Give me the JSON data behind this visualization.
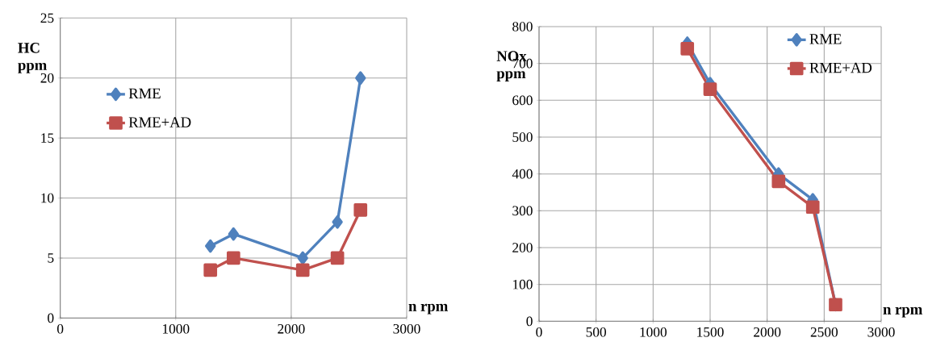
{
  "chart_data": [
    {
      "type": "line",
      "xlabel": "n rpm",
      "ylabel": "HC ppm",
      "x": [
        1300,
        1500,
        2100,
        2400,
        2600
      ],
      "xlim": [
        0,
        3000
      ],
      "xticks": [
        0,
        1000,
        2000,
        3000
      ],
      "ylim": [
        0,
        25
      ],
      "yticks": [
        0,
        5,
        10,
        15,
        20,
        25
      ],
      "grid": true,
      "legend": "left",
      "series": [
        {
          "name": "RME",
          "color": "#4f81bd",
          "marker": "diamond",
          "values": [
            6,
            7,
            5,
            8,
            20
          ]
        },
        {
          "name": "RME+AD",
          "color": "#c0504d",
          "marker": "square",
          "values": [
            4,
            5,
            4,
            5,
            9
          ]
        }
      ]
    },
    {
      "type": "line",
      "xlabel": "n rpm",
      "ylabel": "NOx ppm",
      "x": [
        1300,
        1500,
        2100,
        2400,
        2600
      ],
      "xlim": [
        0,
        3000
      ],
      "xticks": [
        0,
        500,
        1000,
        1500,
        2000,
        2500,
        3000
      ],
      "ylim": [
        0,
        800
      ],
      "yticks": [
        0,
        100,
        200,
        300,
        400,
        500,
        600,
        700,
        800
      ],
      "grid": true,
      "legend": "top right",
      "series": [
        {
          "name": "RME",
          "color": "#4f81bd",
          "marker": "diamond",
          "values": [
            755,
            645,
            400,
            330,
            45
          ]
        },
        {
          "name": "RME+AD",
          "color": "#c0504d",
          "marker": "square",
          "values": [
            740,
            630,
            380,
            310,
            45
          ]
        }
      ]
    }
  ]
}
